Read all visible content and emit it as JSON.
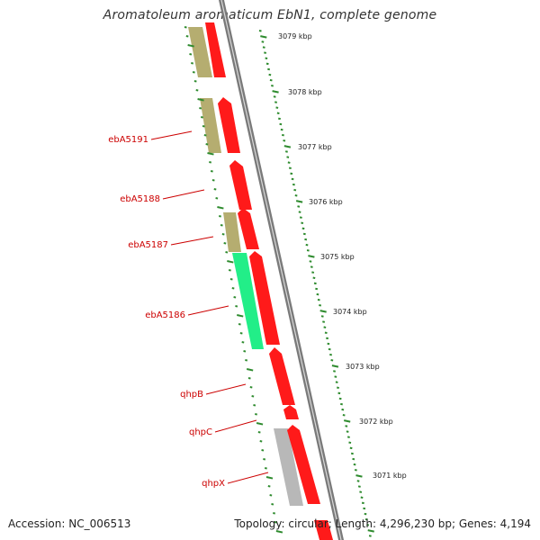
{
  "title": "Aromatoleum aromaticum EbN1, complete genome",
  "footer": {
    "accession": "Accession: NC_006513",
    "summary": "Topology: circular; Length: 4,296,230 bp; Genes: 4,194"
  },
  "colors": {
    "forward_gene": "#ff1a1a",
    "tan_gene": "#b5ad70",
    "highlight_gene": "#22ee88",
    "gray_gene": "#b8b8b8",
    "backbone": "#888888",
    "tick": "#2e8b2e",
    "label": "#cc0000"
  },
  "scale_labels": [
    "3079 kbp",
    "3078 kbp",
    "3077 kbp",
    "3076 kbp",
    "3075 kbp",
    "3074 kbp",
    "3073 kbp",
    "3072 kbp",
    "3071 kbp"
  ],
  "gene_labels": [
    "ebA5191",
    "ebA5188",
    "ebA5187",
    "ebA5186",
    "qhpB",
    "qhpC",
    "qhpX"
  ]
}
